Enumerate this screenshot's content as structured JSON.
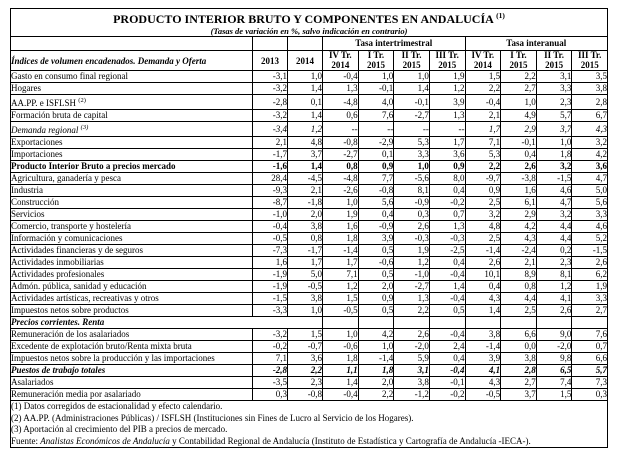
{
  "title": "PRODUCTO INTERIOR BRUTO Y COMPONENTES EN ANDALUCÍA",
  "title_superscript": "(1)",
  "subtitle": "(Tasas de variación en %, salvo indicación en contrario)",
  "table": {
    "row_label_header": "Índices de volumen encadenados. Demanda y Oferta",
    "year_columns": [
      "2013",
      "2014"
    ],
    "group_headers": [
      "Tasa intertrimestral",
      "Tasa interanual"
    ],
    "quarter_columns": [
      {
        "q": "IV Tr.",
        "y": "2014"
      },
      {
        "q": "I Tr.",
        "y": "2015"
      },
      {
        "q": "II Tr.",
        "y": "2015"
      },
      {
        "q": "III Tr.",
        "y": "2015"
      }
    ],
    "rows": [
      {
        "label": "Gasto en consumo final regional",
        "indent": 0,
        "style": "normal",
        "values": [
          "-3,1",
          "1,0",
          "-0,4",
          "1,0",
          "1,0",
          "1,9",
          "1,5",
          "2,2",
          "3,1",
          "3,5"
        ]
      },
      {
        "label": "Hogares",
        "indent": 1,
        "style": "normal",
        "values": [
          "-3,2",
          "1,4",
          "1,3",
          "-0,1",
          "1,4",
          "1,2",
          "2,2",
          "2,7",
          "3,3",
          "3,8"
        ]
      },
      {
        "label": "AA.PP. e ISFLSH",
        "label_sup": "(2)",
        "indent": 1,
        "style": "normal",
        "values": [
          "-2,8",
          "0,1",
          "-4,8",
          "4,0",
          "-0,1",
          "3,9",
          "-0,4",
          "1,0",
          "2,3",
          "2,8"
        ]
      },
      {
        "label": "Formación bruta de capital",
        "indent": 0,
        "style": "normal",
        "values": [
          "-3,2",
          "1,4",
          "0,6",
          "7,6",
          "-2,7",
          "1,3",
          "2,1",
          "4,9",
          "5,7",
          "6,7"
        ]
      },
      {
        "label": "Demanda regional",
        "label_sup": "(3)",
        "indent": 0,
        "style": "italic",
        "values": [
          "-3,4",
          "1,2",
          "--",
          "--",
          "--",
          "--",
          "1,7",
          "2,9",
          "3,7",
          "4,3"
        ]
      },
      {
        "label": "Exportaciones",
        "indent": 0,
        "style": "normal",
        "values": [
          "2,1",
          "4,8",
          "-0,8",
          "-2,9",
          "5,3",
          "1,7",
          "7,1",
          "-0,1",
          "1,0",
          "3,2"
        ]
      },
      {
        "label": "Importaciones",
        "indent": 0,
        "style": "normal",
        "values": [
          "-1,7",
          "3,7",
          "-2,7",
          "0,1",
          "3,3",
          "3,6",
          "5,3",
          "0,4",
          "1,8",
          "4,2"
        ]
      },
      {
        "label": "Producto Interior Bruto a precios mercado",
        "indent": 0,
        "style": "bold",
        "values": [
          "-1,6",
          "1,4",
          "0,8",
          "0,9",
          "1,0",
          "0,9",
          "2,2",
          "2,6",
          "3,2",
          "3,6"
        ]
      },
      {
        "label": "Agricultura, ganadería y pesca",
        "indent": 0,
        "style": "normal",
        "values": [
          "28,4",
          "-4,5",
          "-4,8",
          "7,7",
          "-5,6",
          "8,0",
          "-9,7",
          "-3,8",
          "-1,5",
          "4,7"
        ]
      },
      {
        "label": "Industria",
        "indent": 0,
        "style": "normal",
        "values": [
          "-9,3",
          "2,1",
          "-2,6",
          "-0,8",
          "8,1",
          "0,4",
          "0,9",
          "1,6",
          "4,6",
          "5,0"
        ]
      },
      {
        "label": "Construcción",
        "indent": 0,
        "style": "normal",
        "values": [
          "-8,7",
          "-1,8",
          "1,0",
          "5,6",
          "-0,9",
          "-0,2",
          "2,5",
          "6,1",
          "4,7",
          "5,6"
        ]
      },
      {
        "label": "Servicios",
        "indent": 0,
        "style": "normal",
        "values": [
          "-1,0",
          "2,0",
          "1,9",
          "0,4",
          "0,3",
          "0,7",
          "3,2",
          "2,9",
          "3,2",
          "3,3"
        ]
      },
      {
        "label": "Comercio, transporte y hostelería",
        "indent": 1,
        "style": "normal",
        "values": [
          "-0,4",
          "3,8",
          "1,6",
          "-0,9",
          "2,6",
          "1,3",
          "4,8",
          "4,2",
          "4,4",
          "4,6"
        ]
      },
      {
        "label": "Información y comunicaciones",
        "indent": 1,
        "style": "normal",
        "values": [
          "-0,5",
          "0,8",
          "1,8",
          "3,9",
          "-0,3",
          "-0,3",
          "2,5",
          "4,3",
          "4,4",
          "5,2"
        ]
      },
      {
        "label": "Actividades financieras y de seguros",
        "indent": 1,
        "style": "normal",
        "values": [
          "-7,3",
          "-1,7",
          "-1,4",
          "0,5",
          "1,9",
          "-2,5",
          "-1,4",
          "-2,4",
          "0,2",
          "-1,5"
        ]
      },
      {
        "label": "Actividades inmobiliarias",
        "indent": 1,
        "style": "normal",
        "values": [
          "1,6",
          "1,7",
          "1,7",
          "-0,6",
          "1,2",
          "0,4",
          "2,6",
          "2,1",
          "2,3",
          "2,6"
        ]
      },
      {
        "label": "Actividades profesionales",
        "indent": 1,
        "style": "normal",
        "values": [
          "-1,9",
          "5,0",
          "7,1",
          "0,5",
          "-1,0",
          "-0,4",
          "10,1",
          "8,9",
          "8,1",
          "6,2"
        ]
      },
      {
        "label": "Admón. pública, sanidad y educación",
        "indent": 1,
        "style": "normal",
        "values": [
          "-1,9",
          "-0,5",
          "1,2",
          "2,0",
          "-2,7",
          "1,4",
          "0,4",
          "0,8",
          "1,2",
          "1,9"
        ]
      },
      {
        "label": "Actividades artísticas, recreativas y otros",
        "indent": 1,
        "style": "normal",
        "values": [
          "-1,5",
          "3,8",
          "1,5",
          "0,9",
          "1,3",
          "-0,4",
          "4,3",
          "4,4",
          "4,1",
          "3,3"
        ]
      },
      {
        "label": "Impuestos netos sobre productos",
        "indent": 0,
        "style": "normal",
        "values": [
          "-3,3",
          "1,0",
          "-0,5",
          "0,5",
          "2,2",
          "0,5",
          "1,4",
          "2,5",
          "2,6",
          "2,7"
        ]
      },
      {
        "label": "Precios corrientes. Renta",
        "indent": 0,
        "style": "section",
        "values": []
      },
      {
        "label": "Remuneración de los asalariados",
        "indent": 0,
        "style": "normal",
        "values": [
          "-3,2",
          "1,5",
          "1,0",
          "4,2",
          "2,6",
          "-0,4",
          "3,8",
          "6,6",
          "9,0",
          "7,6"
        ]
      },
      {
        "label": "Excedente de explotación bruto/Renta mixta bruta",
        "indent": 0,
        "style": "normal",
        "values": [
          "-0,2",
          "-0,7",
          "-0,6",
          "1,0",
          "-2,0",
          "2,4",
          "-1,4",
          "0,0",
          "-2,0",
          "0,7"
        ]
      },
      {
        "label": "Impuestos netos sobre la producción y las importaciones",
        "indent": 0,
        "style": "normal",
        "values": [
          "7,1",
          "3,6",
          "1,8",
          "-1,4",
          "5,9",
          "0,4",
          "3,9",
          "3,8",
          "9,8",
          "6,6"
        ]
      },
      {
        "label": "Puestos de trabajo totales",
        "indent": 0,
        "style": "bold-italic",
        "values": [
          "-2,8",
          "2,2",
          "1,1",
          "1,8",
          "3,1",
          "-0,4",
          "4,1",
          "2,8",
          "6,5",
          "5,7"
        ]
      },
      {
        "label": "Asalariados",
        "indent": 0,
        "style": "normal",
        "values": [
          "-3,5",
          "2,3",
          "1,4",
          "2,0",
          "3,8",
          "-0,1",
          "4,3",
          "2,7",
          "7,4",
          "7,3"
        ]
      },
      {
        "label": "Remuneración media por asalariado",
        "indent": 0,
        "style": "normal",
        "values": [
          "0,3",
          "-0,8",
          "-0,4",
          "2,2",
          "-1,2",
          "-0,2",
          "-0,5",
          "3,7",
          "1,5",
          "0,3"
        ]
      }
    ]
  },
  "footnotes": [
    "(1) Datos corregidos de estacionalidad y efecto calendario.",
    "(2) AA.PP. (Administraciones Públicas) / ISFLSH (Instituciones sin Fines de Lucro al Servicio de los Hogares).",
    "(3) Aportación al crecimiento del PIB a precios de mercado."
  ],
  "source": {
    "prefix": "Fuente: ",
    "italic": "Analistas Económicos de Andalucía",
    "rest": " y Contabilidad Regional de Andalucía (Instituto de Estadística y Cartografía de Andalucía -IECA-)."
  }
}
